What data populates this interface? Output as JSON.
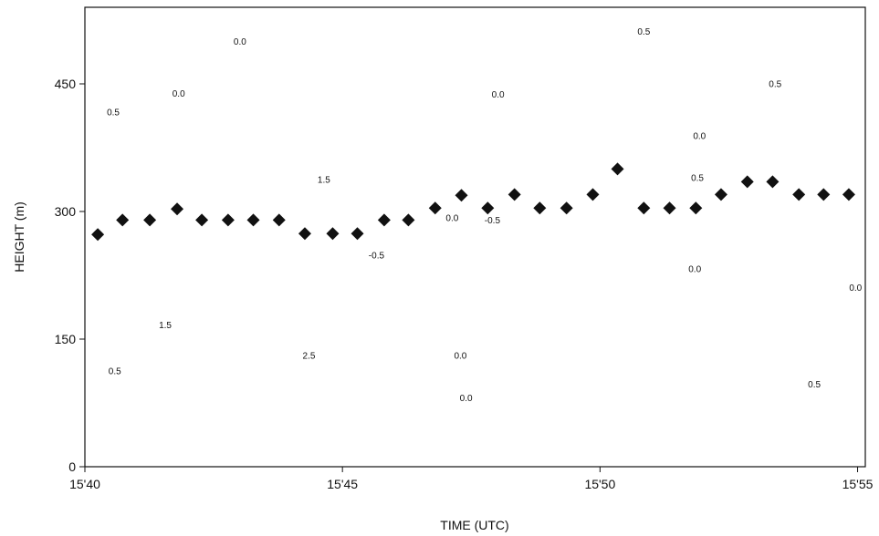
{
  "chart_data": {
    "type": "scatter",
    "xlabel": "TIME (UTC)",
    "ylabel": "HEIGHT (m)",
    "xlim": [
      0,
      15.15
    ],
    "ylim": [
      0,
      540
    ],
    "xticks": [
      {
        "value": 0,
        "label": "15'40"
      },
      {
        "value": 5,
        "label": "15'45"
      },
      {
        "value": 10,
        "label": "15'50"
      },
      {
        "value": 15,
        "label": "15'55"
      }
    ],
    "yticks": [
      0,
      150,
      300,
      450
    ],
    "marker": "diamond",
    "color": "#111111",
    "x": [
      0.25,
      0.73,
      1.26,
      1.79,
      2.27,
      2.78,
      3.27,
      3.77,
      4.27,
      4.81,
      5.29,
      5.81,
      6.28,
      6.8,
      7.31,
      7.82,
      8.34,
      8.83,
      9.35,
      9.86,
      10.34,
      10.85,
      11.35,
      11.86,
      12.35,
      12.86,
      13.35,
      13.86,
      14.34,
      14.83
    ],
    "values": [
      273,
      290,
      290,
      303,
      290,
      290,
      290,
      290,
      274,
      274,
      274,
      290,
      290,
      304,
      319,
      304,
      320,
      304,
      304,
      320,
      350,
      304,
      304,
      304,
      320,
      335,
      335,
      320,
      320,
      320
    ],
    "annotations": [
      {
        "text": "0.0",
        "x": 3.01,
        "y": 496
      },
      {
        "text": "0.0",
        "x": 1.82,
        "y": 435
      },
      {
        "text": "0.5",
        "x": 0.55,
        "y": 413
      },
      {
        "text": "1.5",
        "x": 4.64,
        "y": 334
      },
      {
        "text": "-0.5",
        "x": 5.66,
        "y": 245
      },
      {
        "text": "0.0",
        "x": 7.13,
        "y": 289
      },
      {
        "text": "-0.5",
        "x": 7.91,
        "y": 286
      },
      {
        "text": "0.0",
        "x": 8.02,
        "y": 434
      },
      {
        "text": "0.5",
        "x": 13.4,
        "y": 446
      },
      {
        "text": "0.0",
        "x": 11.93,
        "y": 385
      },
      {
        "text": "0.5",
        "x": 11.89,
        "y": 336
      },
      {
        "text": "0.0",
        "x": 11.84,
        "y": 229
      },
      {
        "text": "0.0",
        "x": 14.96,
        "y": 207
      },
      {
        "text": "0.0",
        "x": 7.29,
        "y": 127
      },
      {
        "text": "0.0",
        "x": 7.4,
        "y": 77
      },
      {
        "text": "0.5",
        "x": 10.85,
        "y": 508
      },
      {
        "text": "1.5",
        "x": 1.56,
        "y": 163
      },
      {
        "text": "2.5",
        "x": 4.35,
        "y": 127
      },
      {
        "text": "0.5",
        "x": 0.58,
        "y": 109
      },
      {
        "text": "0.5",
        "x": 14.16,
        "y": 93
      }
    ]
  }
}
